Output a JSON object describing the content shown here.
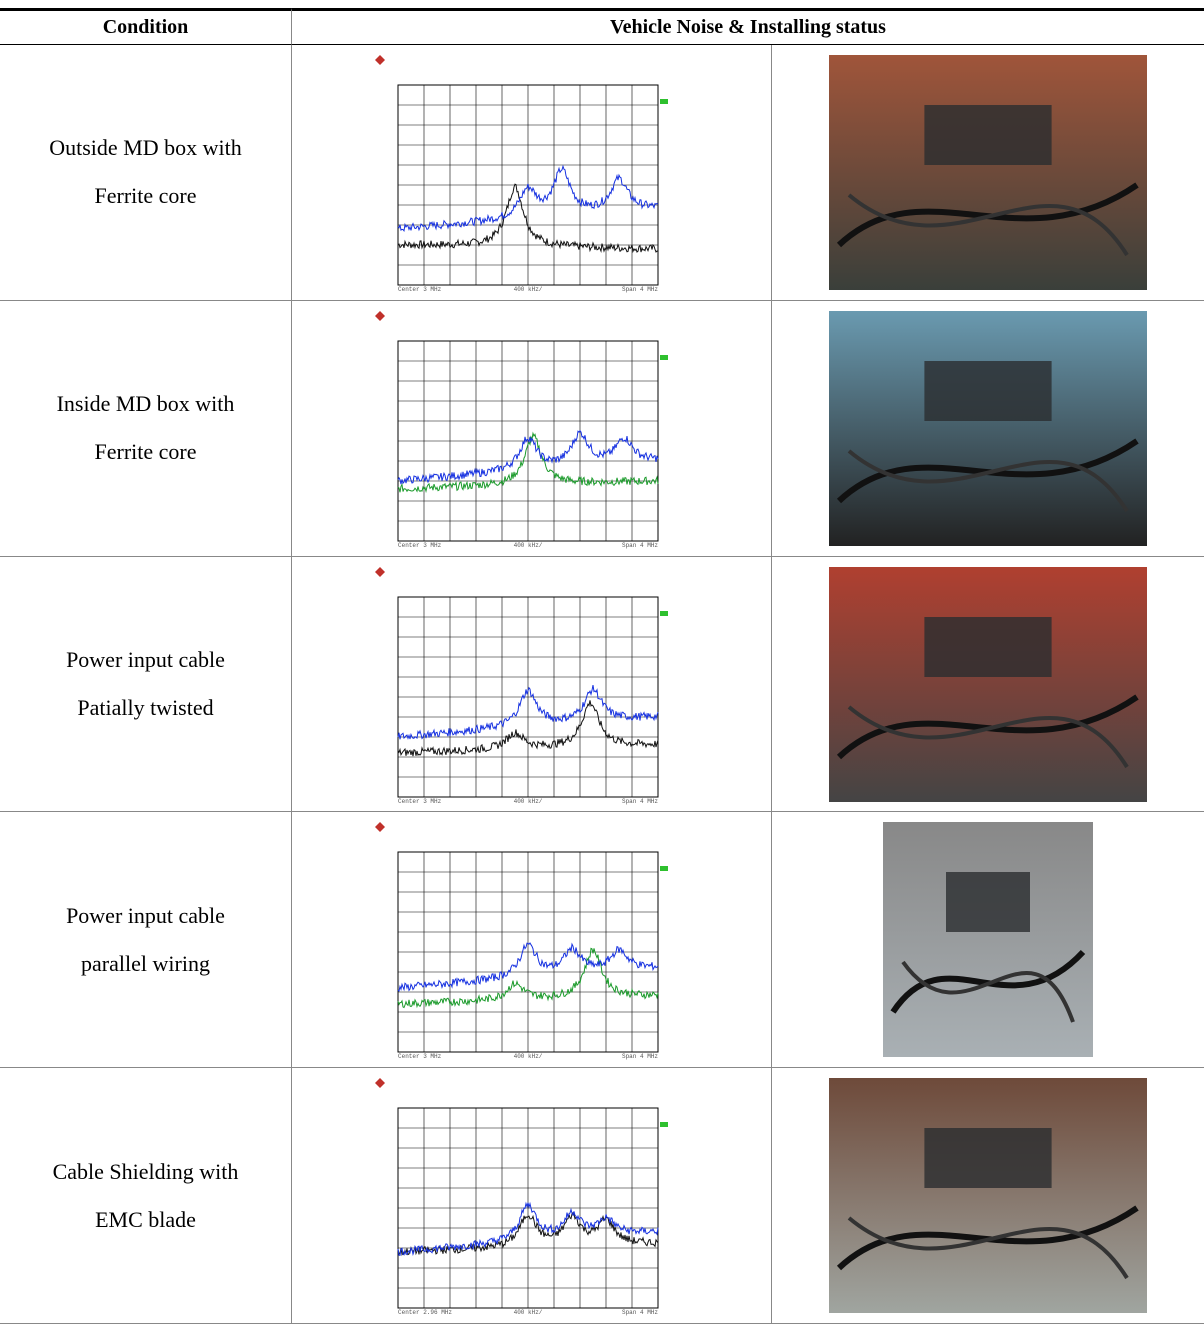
{
  "header": {
    "condition": "Condition",
    "status": "Vehicle Noise & Installing status"
  },
  "rows": [
    {
      "condition": [
        "Outside MD box with",
        "Ferrite core"
      ],
      "plot": {
        "center": "Center 3 MHz",
        "div": "400 kHz/",
        "span": "Span 4 MHz"
      }
    },
    {
      "condition": [
        "Inside MD box with",
        "Ferrite core"
      ],
      "plot": {
        "center": "Center 3 MHz",
        "div": "400 kHz/",
        "span": "Span 4 MHz"
      }
    },
    {
      "condition": [
        "Power input cable",
        "Patially twisted"
      ],
      "plot": {
        "center": "Center 3 MHz",
        "div": "400 kHz/",
        "span": "Span 4 MHz"
      }
    },
    {
      "condition": [
        "Power input cable",
        "parallel wiring"
      ],
      "plot": {
        "center": "Center 3 MHz",
        "div": "400 kHz/",
        "span": "Span 4 MHz"
      }
    },
    {
      "condition": [
        "Cable Shielding with",
        "EMC blade"
      ],
      "plot": {
        "center": "Center 2.96 MHz",
        "div": "400 kHz/",
        "span": "Span 4 MHz"
      }
    }
  ]
}
